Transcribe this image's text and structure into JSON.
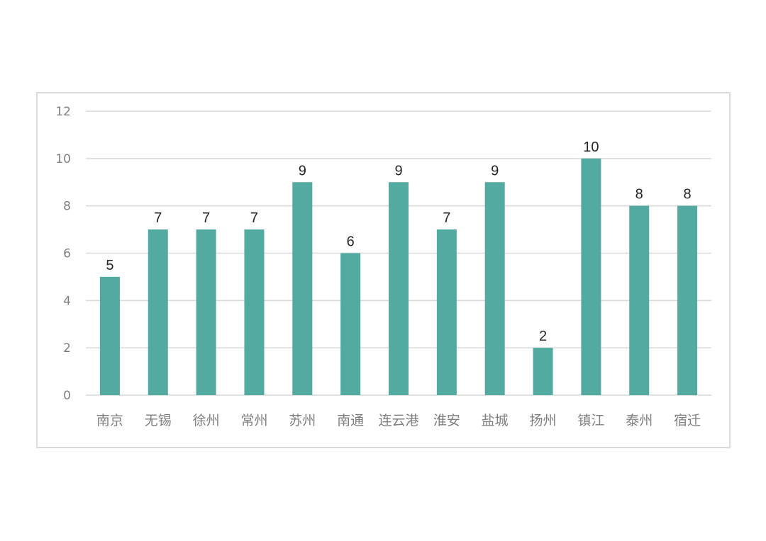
{
  "chart_data": {
    "type": "bar",
    "title": "",
    "xlabel": "",
    "ylabel": "",
    "categories": [
      "南京",
      "无锡",
      "徐州",
      "常州",
      "苏州",
      "南通",
      "连云港",
      "淮安",
      "盐城",
      "扬州",
      "镇江",
      "泰州",
      "宿迁"
    ],
    "values": [
      5,
      7,
      7,
      7,
      9,
      6,
      9,
      7,
      9,
      2,
      10,
      8,
      8
    ],
    "ylim": [
      0,
      12
    ],
    "yticks": [
      "0",
      "2",
      "4",
      "6",
      "8",
      "10",
      "12"
    ],
    "grid": true,
    "data_labels": true,
    "bar_color": "#52aaa0",
    "grid_color": "#d9d9d9",
    "legend": "none"
  }
}
